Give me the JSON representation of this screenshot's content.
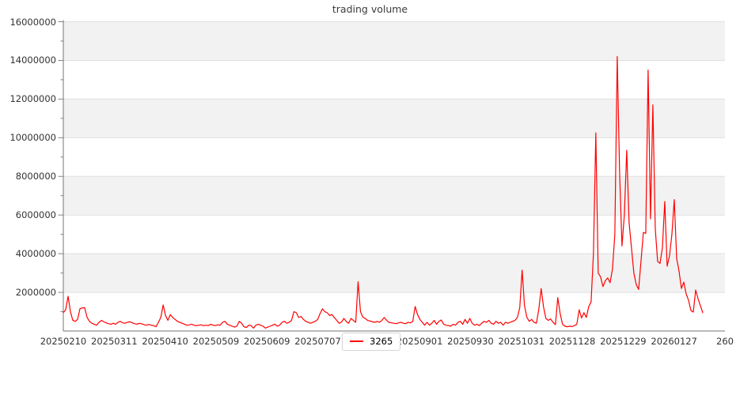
{
  "chart_data": {
    "type": "line",
    "title": "trading volume",
    "xlabel": "",
    "ylabel": "",
    "ylim": [
      0,
      16000000
    ],
    "grid": "horizontal",
    "background_bands": "alternating gray every 2000000",
    "legend": {
      "position": "bottom-center",
      "entries": [
        {
          "label": "3265",
          "color": "#ff0000"
        }
      ]
    },
    "x_tick_labels": [
      "20250210",
      "20250311",
      "20250410",
      "20250509",
      "20250609",
      "20250707",
      "20250806",
      "20250901",
      "20250930",
      "20251031",
      "20251128",
      "20251229",
      "20260127",
      "260"
    ],
    "y_ticks": [
      2000000,
      4000000,
      6000000,
      8000000,
      10000000,
      12000000,
      14000000,
      16000000
    ],
    "series": [
      {
        "name": "3265",
        "color": "#ff0000",
        "values": [
          950000,
          1100000,
          1800000,
          1000000,
          550000,
          500000,
          600000,
          1150000,
          1200000,
          1200000,
          700000,
          500000,
          400000,
          350000,
          300000,
          450000,
          550000,
          480000,
          420000,
          380000,
          350000,
          400000,
          350000,
          450000,
          500000,
          420000,
          400000,
          450000,
          480000,
          420000,
          380000,
          350000,
          400000,
          370000,
          330000,
          300000,
          340000,
          300000,
          280000,
          220000,
          450000,
          700000,
          1350000,
          800000,
          550000,
          850000,
          700000,
          600000,
          500000,
          450000,
          400000,
          350000,
          300000,
          320000,
          350000,
          300000,
          280000,
          300000,
          320000,
          280000,
          300000,
          280000,
          350000,
          300000,
          280000,
          320000,
          300000,
          450000,
          500000,
          350000,
          300000,
          250000,
          200000,
          250000,
          500000,
          400000,
          220000,
          180000,
          300000,
          280000,
          150000,
          300000,
          350000,
          300000,
          250000,
          150000,
          200000,
          250000,
          300000,
          350000,
          250000,
          300000,
          450000,
          500000,
          400000,
          450000,
          550000,
          1000000,
          950000,
          700000,
          750000,
          600000,
          500000,
          450000,
          400000,
          450000,
          500000,
          600000,
          900000,
          1150000,
          1000000,
          950000,
          800000,
          850000,
          700000,
          550000,
          400000,
          450000,
          650000,
          500000,
          400000,
          650000,
          550000,
          450000,
          2550000,
          1000000,
          720000,
          650000,
          550000,
          520000,
          480000,
          450000,
          500000,
          450000,
          550000,
          700000,
          550000,
          450000,
          420000,
          400000,
          380000,
          420000,
          450000,
          400000,
          380000,
          450000,
          420000,
          500000,
          1270000,
          850000,
          600000,
          450000,
          300000,
          450000,
          300000,
          400000,
          550000,
          350000,
          500000,
          570000,
          350000,
          300000,
          280000,
          250000,
          350000,
          300000,
          450000,
          500000,
          350000,
          600000,
          400000,
          650000,
          400000,
          300000,
          350000,
          280000,
          400000,
          500000,
          450000,
          550000,
          400000,
          350000,
          500000,
          400000,
          450000,
          300000,
          450000,
          400000,
          450000,
          500000,
          550000,
          700000,
          1200000,
          3150000,
          1300000,
          710000,
          500000,
          600000,
          450000,
          400000,
          1100000,
          2200000,
          1250000,
          650000,
          550000,
          620000,
          450000,
          330000,
          1730000,
          900000,
          350000,
          250000,
          220000,
          250000,
          230000,
          280000,
          350000,
          1100000,
          670000,
          950000,
          700000,
          1250000,
          1500000,
          4000000,
          10250000,
          3000000,
          2800000,
          2300000,
          2600000,
          2750000,
          2500000,
          3200000,
          5000000,
          14200000,
          8200000,
          4400000,
          6000000,
          9350000,
          5600000,
          4300000,
          3000000,
          2400000,
          2150000,
          3600000,
          5100000,
          5050000,
          13500000,
          5800000,
          11700000,
          5300000,
          3600000,
          3500000,
          4300000,
          6700000,
          3350000,
          3900000,
          5000000,
          6800000,
          3760000,
          3100000,
          2200000,
          2530000,
          1920000,
          1590000,
          1060000,
          980000,
          2120000,
          1670000,
          1300000,
          950000
        ]
      }
    ],
    "colors": {
      "line": "#ff0000",
      "band": "#f2f2f2",
      "gridline": "#dfdfdf",
      "spine": "#767676",
      "tick_label": "#333333",
      "title": "#3b3b3b",
      "background": "#ffffff"
    }
  }
}
